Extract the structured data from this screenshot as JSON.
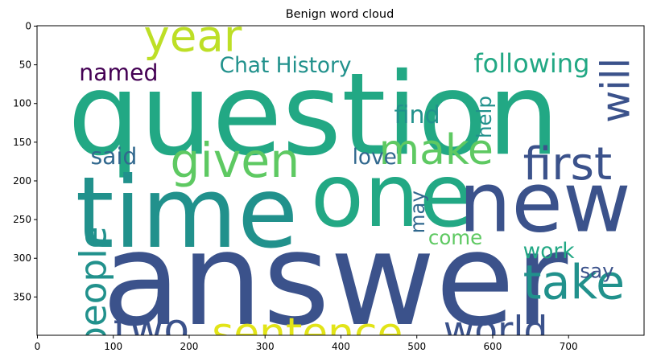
{
  "chart_data": {
    "type": "word_cloud",
    "title": "Benign word cloud",
    "xlabel": "",
    "ylabel": "",
    "xlim": [
      -0.5,
      799.5
    ],
    "ylim": [
      399.5,
      -0.5
    ],
    "x_ticks": [
      0,
      100,
      200,
      300,
      400,
      500,
      600,
      700
    ],
    "y_ticks": [
      0,
      50,
      100,
      150,
      200,
      250,
      300,
      350
    ],
    "grid": false,
    "legend": "none",
    "palette": "viridis",
    "words": [
      {
        "text": "question",
        "x": 40,
        "y": 165,
        "size": 150,
        "rotate": 0,
        "color": "#22a884"
      },
      {
        "text": "answer",
        "x": 85,
        "y": 385,
        "size": 170,
        "rotate": 0,
        "color": "#3b528b"
      },
      {
        "text": "time",
        "x": 50,
        "y": 285,
        "size": 130,
        "rotate": 0,
        "color": "#21918c"
      },
      {
        "text": "one",
        "x": 360,
        "y": 258,
        "size": 115,
        "rotate": 0,
        "color": "#22a884"
      },
      {
        "text": "new",
        "x": 555,
        "y": 265,
        "size": 110,
        "rotate": 0,
        "color": "#3b528b"
      },
      {
        "text": "year",
        "x": 140,
        "y": 32,
        "size": 58,
        "rotate": 0,
        "color": "#bddf26"
      },
      {
        "text": "given",
        "x": 175,
        "y": 195,
        "size": 62,
        "rotate": 0,
        "color": "#5ec962"
      },
      {
        "text": "make",
        "x": 450,
        "y": 178,
        "size": 55,
        "rotate": 0,
        "color": "#5ec962"
      },
      {
        "text": "first",
        "x": 640,
        "y": 198,
        "size": 60,
        "rotate": 0,
        "color": "#3b528b"
      },
      {
        "text": "take",
        "x": 640,
        "y": 352,
        "size": 62,
        "rotate": 0,
        "color": "#21918c"
      },
      {
        "text": "two",
        "x": 100,
        "y": 410,
        "size": 55,
        "rotate": 0,
        "color": "#3b528b"
      },
      {
        "text": "sentence",
        "x": 230,
        "y": 415,
        "size": 55,
        "rotate": 0,
        "color": "#e2e418"
      },
      {
        "text": "world",
        "x": 535,
        "y": 410,
        "size": 50,
        "rotate": 0,
        "color": "#3b528b"
      },
      {
        "text": "people",
        "x": 90,
        "y": 418,
        "size": 48,
        "rotate": -90,
        "color": "#21918c"
      },
      {
        "text": "will",
        "x": 780,
        "y": 125,
        "size": 52,
        "rotate": -90,
        "color": "#3b528b"
      },
      {
        "text": "following",
        "x": 575,
        "y": 60,
        "size": 34,
        "rotate": 0,
        "color": "#22a884"
      },
      {
        "text": "Chat History",
        "x": 240,
        "y": 60,
        "size": 28,
        "rotate": 0,
        "color": "#21918c"
      },
      {
        "text": "named",
        "x": 55,
        "y": 70,
        "size": 30,
        "rotate": 0,
        "color": "#440154"
      },
      {
        "text": "find",
        "x": 470,
        "y": 125,
        "size": 32,
        "rotate": 0,
        "color": "#21918c"
      },
      {
        "text": "help",
        "x": 598,
        "y": 145,
        "size": 26,
        "rotate": -90,
        "color": "#21918c"
      },
      {
        "text": "love",
        "x": 415,
        "y": 178,
        "size": 28,
        "rotate": 0,
        "color": "#31688e"
      },
      {
        "text": "said",
        "x": 70,
        "y": 178,
        "size": 30,
        "rotate": 0,
        "color": "#31688e"
      },
      {
        "text": "may",
        "x": 510,
        "y": 268,
        "size": 26,
        "rotate": -90,
        "color": "#31688e"
      },
      {
        "text": "come",
        "x": 515,
        "y": 282,
        "size": 26,
        "rotate": 0,
        "color": "#5ec962"
      },
      {
        "text": "work",
        "x": 640,
        "y": 300,
        "size": 28,
        "rotate": 0,
        "color": "#22a884"
      },
      {
        "text": "say",
        "x": 715,
        "y": 325,
        "size": 26,
        "rotate": 0,
        "color": "#3b528b"
      }
    ]
  }
}
